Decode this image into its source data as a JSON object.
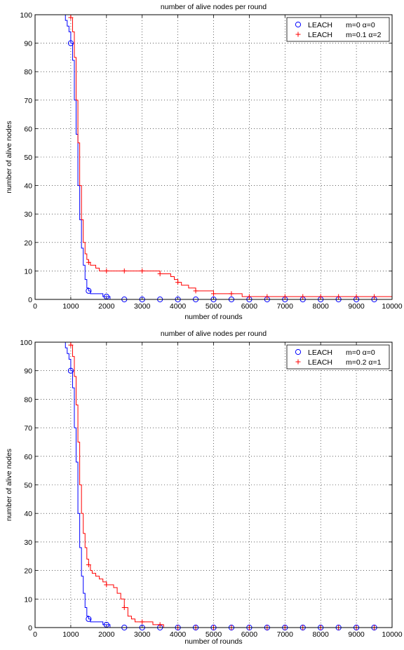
{
  "chart_data": [
    {
      "type": "line",
      "title": "number of alive nodes per round",
      "xlabel": "number of rounds",
      "ylabel": "number of alive nodes",
      "xlim": [
        0,
        10000
      ],
      "ylim": [
        0,
        100
      ],
      "xticks": [
        0,
        1000,
        2000,
        3000,
        4000,
        5000,
        6000,
        7000,
        8000,
        9000,
        10000
      ],
      "yticks": [
        0,
        10,
        20,
        30,
        40,
        50,
        60,
        70,
        80,
        90,
        100
      ],
      "grid": true,
      "legend_position": "top-right",
      "series": [
        {
          "name": "LEACH m=0 α=0",
          "color": "#0000ff",
          "marker": "circle",
          "x": [
            0,
            800,
            850,
            900,
            950,
            1000,
            1050,
            1100,
            1150,
            1200,
            1250,
            1300,
            1350,
            1400,
            1450,
            1500,
            1550,
            1600,
            1700,
            1800,
            1900,
            2000,
            2100,
            2500,
            3000,
            3500,
            4000,
            4500,
            5000,
            5500,
            6000,
            6500,
            7000,
            7500,
            8000,
            8500,
            9000,
            9500,
            10000
          ],
          "y": [
            100,
            100,
            98,
            96,
            94,
            90,
            84,
            70,
            58,
            40,
            28,
            18,
            12,
            7,
            4,
            3,
            2,
            2,
            2,
            2,
            1,
            1,
            0,
            0,
            0,
            0,
            0,
            0,
            0,
            0,
            0,
            0,
            0,
            0,
            0,
            0,
            0,
            0,
            0
          ],
          "marker_x": [
            1000,
            1500,
            2000,
            2500,
            3000,
            3500,
            4000,
            4500,
            5000,
            5500,
            6000,
            6500,
            7000,
            7500,
            8000,
            8500,
            9000,
            9500
          ],
          "marker_y": [
            90,
            3,
            1,
            0,
            0,
            0,
            0,
            0,
            0,
            0,
            0,
            0,
            0,
            0,
            0,
            0,
            0,
            0
          ]
        },
        {
          "name": "LEACH m=0.1 α=2",
          "color": "#ff0000",
          "marker": "plus",
          "x": [
            0,
            950,
            1000,
            1050,
            1100,
            1150,
            1200,
            1250,
            1300,
            1350,
            1400,
            1450,
            1500,
            1550,
            1600,
            1700,
            1800,
            1900,
            2000,
            2500,
            3000,
            3300,
            3500,
            3800,
            3900,
            4000,
            4100,
            4300,
            4500,
            4700,
            5000,
            5500,
            5800,
            6000,
            6500,
            7000,
            7500,
            8000,
            8500,
            9000,
            9500,
            10000
          ],
          "y": [
            100,
            100,
            99,
            94,
            85,
            70,
            55,
            40,
            28,
            20,
            16,
            14,
            13,
            12,
            12,
            11,
            10,
            10,
            10,
            10,
            10,
            10,
            9,
            8,
            7,
            6,
            5,
            4,
            3,
            3,
            2,
            2,
            1,
            1,
            1,
            1,
            1,
            1,
            1,
            1,
            1,
            1
          ],
          "marker_x": [
            1000,
            1500,
            2000,
            2500,
            3000,
            3500,
            4000,
            4500,
            5000,
            5500,
            6000,
            6500,
            7000,
            7500,
            8000,
            8500,
            9000,
            9500
          ],
          "marker_y": [
            99,
            13,
            10,
            10,
            10,
            9,
            6,
            3,
            2,
            2,
            1,
            1,
            1,
            1,
            1,
            1,
            1,
            1
          ]
        }
      ]
    },
    {
      "type": "line",
      "title": "number of alive nodes per round",
      "xlabel": "number of rounds",
      "ylabel": "number of alive nodes",
      "xlim": [
        0,
        10000
      ],
      "ylim": [
        0,
        100
      ],
      "xticks": [
        0,
        1000,
        2000,
        3000,
        4000,
        5000,
        6000,
        7000,
        8000,
        9000,
        10000
      ],
      "yticks": [
        0,
        10,
        20,
        30,
        40,
        50,
        60,
        70,
        80,
        90,
        100
      ],
      "grid": true,
      "legend_position": "top-right",
      "series": [
        {
          "name": "LEACH m=0 α=0",
          "color": "#0000ff",
          "marker": "circle",
          "x": [
            0,
            800,
            850,
            900,
            950,
            1000,
            1050,
            1100,
            1150,
            1200,
            1250,
            1300,
            1350,
            1400,
            1450,
            1500,
            1550,
            1600,
            1700,
            1800,
            1900,
            2000,
            2100,
            2500,
            3000,
            3500,
            4000,
            4500,
            5000,
            5500,
            6000,
            6500,
            7000,
            7500,
            8000,
            8500,
            9000,
            9500,
            10000
          ],
          "y": [
            100,
            100,
            98,
            96,
            94,
            90,
            84,
            70,
            58,
            40,
            28,
            18,
            12,
            7,
            4,
            3,
            2,
            2,
            2,
            2,
            1,
            1,
            0,
            0,
            0,
            0,
            0,
            0,
            0,
            0,
            0,
            0,
            0,
            0,
            0,
            0,
            0,
            0,
            0
          ],
          "marker_x": [
            1000,
            1500,
            2000,
            2500,
            3000,
            3500,
            4000,
            4500,
            5000,
            5500,
            6000,
            6500,
            7000,
            7500,
            8000,
            8500,
            9000,
            9500
          ],
          "marker_y": [
            90,
            3,
            1,
            0,
            0,
            0,
            0,
            0,
            0,
            0,
            0,
            0,
            0,
            0,
            0,
            0,
            0,
            0
          ]
        },
        {
          "name": "LEACH m=0.2 α=1",
          "color": "#ff0000",
          "marker": "plus",
          "x": [
            0,
            950,
            1000,
            1050,
            1100,
            1150,
            1200,
            1250,
            1300,
            1350,
            1400,
            1450,
            1500,
            1550,
            1600,
            1700,
            1800,
            1900,
            2000,
            2100,
            2200,
            2300,
            2400,
            2500,
            2600,
            2700,
            2800,
            3000,
            3300,
            3500,
            3600,
            4000,
            4500,
            5000,
            5500,
            6000,
            6500,
            7000,
            7500,
            8000,
            8500,
            9000,
            9500,
            10000
          ],
          "y": [
            100,
            100,
            99,
            95,
            88,
            78,
            65,
            50,
            40,
            33,
            28,
            24,
            22,
            20,
            19,
            18,
            17,
            16,
            15,
            15,
            14,
            12,
            10,
            7,
            4,
            3,
            2,
            2,
            1,
            1,
            0,
            0,
            0,
            0,
            0,
            0,
            0,
            0,
            0,
            0,
            0,
            0,
            0,
            0
          ],
          "marker_x": [
            1000,
            1500,
            2000,
            2500,
            3000,
            3500,
            4000,
            4500,
            5000,
            5500,
            6000,
            6500,
            7000,
            7500,
            8000,
            8500,
            9000,
            9500
          ],
          "marker_y": [
            99,
            22,
            15,
            7,
            2,
            1,
            0,
            0,
            0,
            0,
            0,
            0,
            0,
            0,
            0,
            0,
            0,
            0
          ]
        }
      ]
    }
  ]
}
